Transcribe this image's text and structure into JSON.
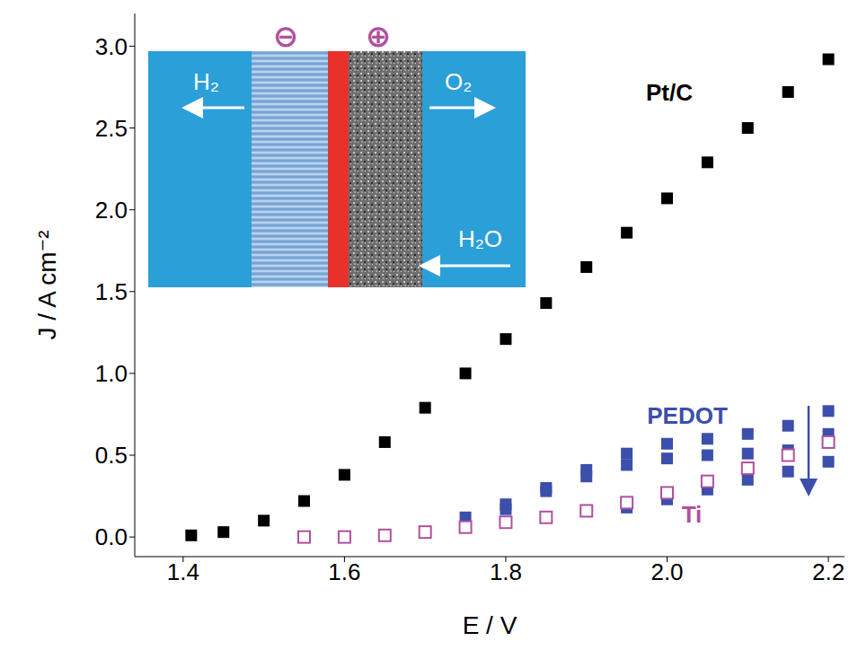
{
  "chart_data": {
    "type": "scatter",
    "x_label": "E / V",
    "y_label": "J / A cm⁻²",
    "xlim": [
      1.34,
      2.22
    ],
    "ylim": [
      -0.12,
      3.2
    ],
    "xticks": [
      1.4,
      1.6,
      1.8,
      {
        "value": 2,
        "label": "2.0"
      },
      2.2
    ],
    "yticks": [
      {
        "value": 0,
        "label": "0.0"
      },
      0.5,
      {
        "value": 1,
        "label": "1.0"
      },
      1.5,
      {
        "value": 2,
        "label": "2.0"
      },
      2.5,
      {
        "value": 3,
        "label": "3.0"
      }
    ],
    "grid": false,
    "series": [
      {
        "name": "Pt/C",
        "color": "#000000",
        "marker": "square",
        "x": [
          1.41,
          1.45,
          1.5,
          1.55,
          1.6,
          1.65,
          1.7,
          1.75,
          1.8,
          1.85,
          1.9,
          1.95,
          2.0,
          2.05,
          2.1,
          2.15,
          2.2
        ],
        "values": [
          0.01,
          0.03,
          0.1,
          0.22,
          0.38,
          0.58,
          0.79,
          1.0,
          1.21,
          1.43,
          1.65,
          1.86,
          2.07,
          2.29,
          2.5,
          2.72,
          2.92
        ]
      },
      {
        "name": "PEDOT",
        "color": "#3b4fab",
        "marker": "square",
        "x": [
          1.75,
          1.8,
          1.8,
          1.85,
          1.85,
          1.9,
          1.9,
          1.95,
          1.95,
          1.95,
          2.0,
          2.0,
          2.0,
          2.05,
          2.05,
          2.05,
          2.1,
          2.1,
          2.1,
          2.15,
          2.15,
          2.15,
          2.2,
          2.2,
          2.2
        ],
        "values": [
          0.12,
          0.17,
          0.2,
          0.28,
          0.3,
          0.37,
          0.41,
          0.51,
          0.44,
          0.18,
          0.57,
          0.48,
          0.23,
          0.6,
          0.5,
          0.29,
          0.63,
          0.51,
          0.35,
          0.68,
          0.53,
          0.4,
          0.77,
          0.63,
          0.46
        ]
      },
      {
        "name": "Ti",
        "color": "#b0509f",
        "marker": "open_square",
        "x": [
          1.55,
          1.6,
          1.65,
          1.7,
          1.75,
          1.8,
          1.85,
          1.9,
          1.95,
          2.0,
          2.05,
          2.1,
          2.15,
          2.2
        ],
        "values": [
          0.0,
          0.0,
          0.01,
          0.03,
          0.06,
          0.09,
          0.12,
          0.16,
          0.21,
          0.27,
          0.34,
          0.42,
          0.5,
          0.58
        ]
      }
    ],
    "inset": {
      "electrode_signs": [
        "⊖",
        "⊕"
      ],
      "labels": [
        "H₂",
        "O₂",
        "H₂O"
      ]
    }
  }
}
